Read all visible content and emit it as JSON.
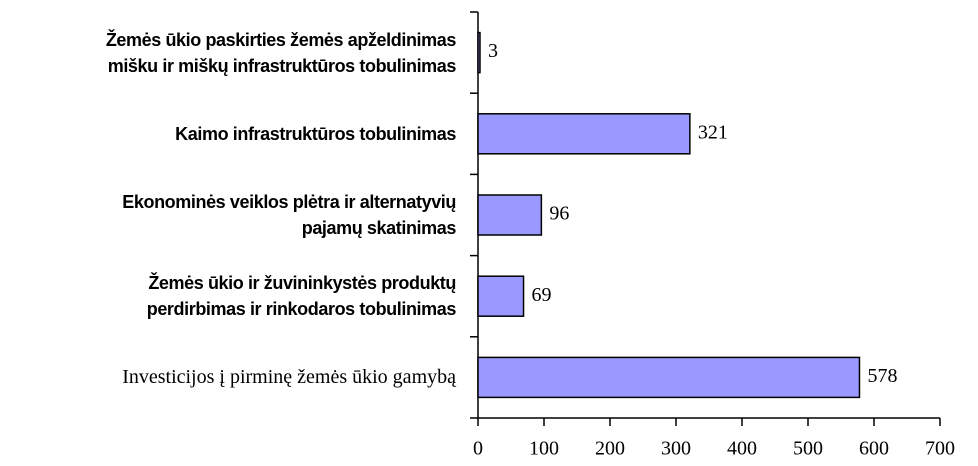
{
  "chart_data": {
    "type": "barh",
    "categories": [
      "Žemės ūkio paskirties žemės apželdinimas\nmišku ir miškų infrastruktūros tobulinimas",
      "Kaimo infrastruktūros tobulinimas",
      "Ekonominės veiklos plėtra ir alternatyvių\npajamų skatinimas",
      "Žemės ūkio ir žuvininkystės produktų\nperdirbimas ir rinkodaros tobulinimas",
      "Investicijos į pirminę žemės ūkio gamybą"
    ],
    "values": [
      3,
      321,
      96,
      69,
      578
    ],
    "color": "#9999ff",
    "xlim": [
      0,
      700
    ],
    "xticks": [
      0,
      100,
      200,
      300,
      400,
      500,
      600,
      700
    ]
  }
}
